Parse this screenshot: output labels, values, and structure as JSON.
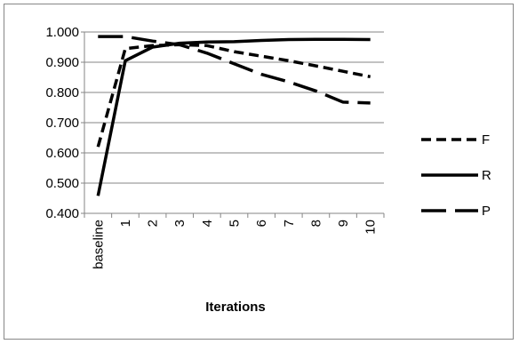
{
  "chart_data": {
    "type": "line",
    "title": "",
    "xlabel": "Iterations",
    "ylabel": "",
    "categories": [
      "baseline",
      "1",
      "2",
      "3",
      "4",
      "5",
      "6",
      "7",
      "8",
      "9",
      "10"
    ],
    "ylim": [
      0.4,
      1.0
    ],
    "yticks": [
      "0.400",
      "0.500",
      "0.600",
      "0.700",
      "0.800",
      "0.900",
      "1.000"
    ],
    "grid": true,
    "legend_position": "right",
    "series": [
      {
        "name": "F",
        "dash": "dashed",
        "values": [
          0.62,
          0.945,
          0.955,
          0.958,
          0.955,
          0.935,
          0.92,
          0.905,
          0.888,
          0.87,
          0.852
        ]
      },
      {
        "name": "R",
        "dash": "solid",
        "values": [
          0.458,
          0.905,
          0.95,
          0.963,
          0.967,
          0.968,
          0.972,
          0.975,
          0.976,
          0.976,
          0.975
        ]
      },
      {
        "name": "P",
        "dash": "long-dash",
        "values": [
          0.985,
          0.985,
          0.97,
          0.958,
          0.93,
          0.895,
          0.86,
          0.835,
          0.805,
          0.768,
          0.765
        ]
      }
    ]
  }
}
